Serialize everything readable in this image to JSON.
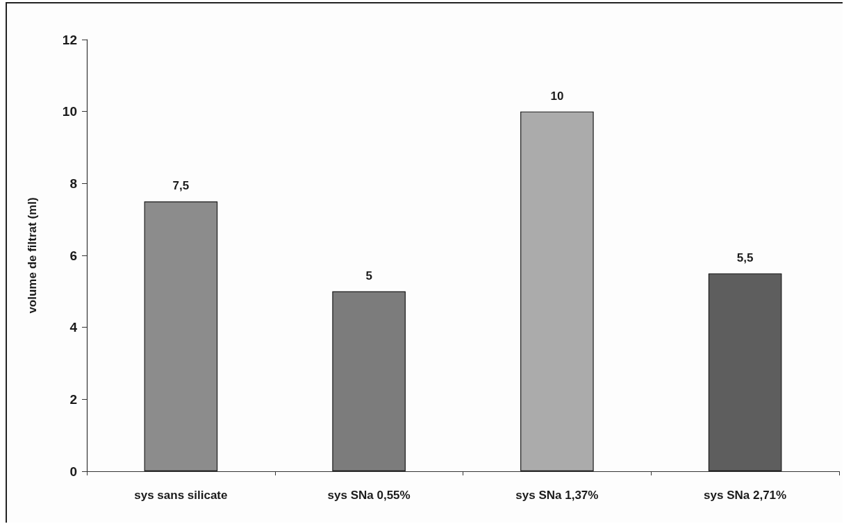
{
  "chart_data": {
    "type": "bar",
    "ylabel": "volume de filtrat (ml)",
    "categories": [
      "sys sans silicate",
      "sys SNa 0,55%",
      "sys SNa 1,37%",
      "sys SNa 2,71%"
    ],
    "values": [
      7.5,
      5,
      10,
      5.5
    ],
    "value_labels": [
      "7,5",
      "5",
      "10",
      "5,5"
    ],
    "colors": [
      "#8c8c8c",
      "#7c7c7c",
      "#ababab",
      "#5e5e5e"
    ],
    "ylim": [
      0,
      12
    ],
    "yticks": [
      0,
      2,
      4,
      6,
      8,
      10,
      12
    ],
    "grid": false
  }
}
